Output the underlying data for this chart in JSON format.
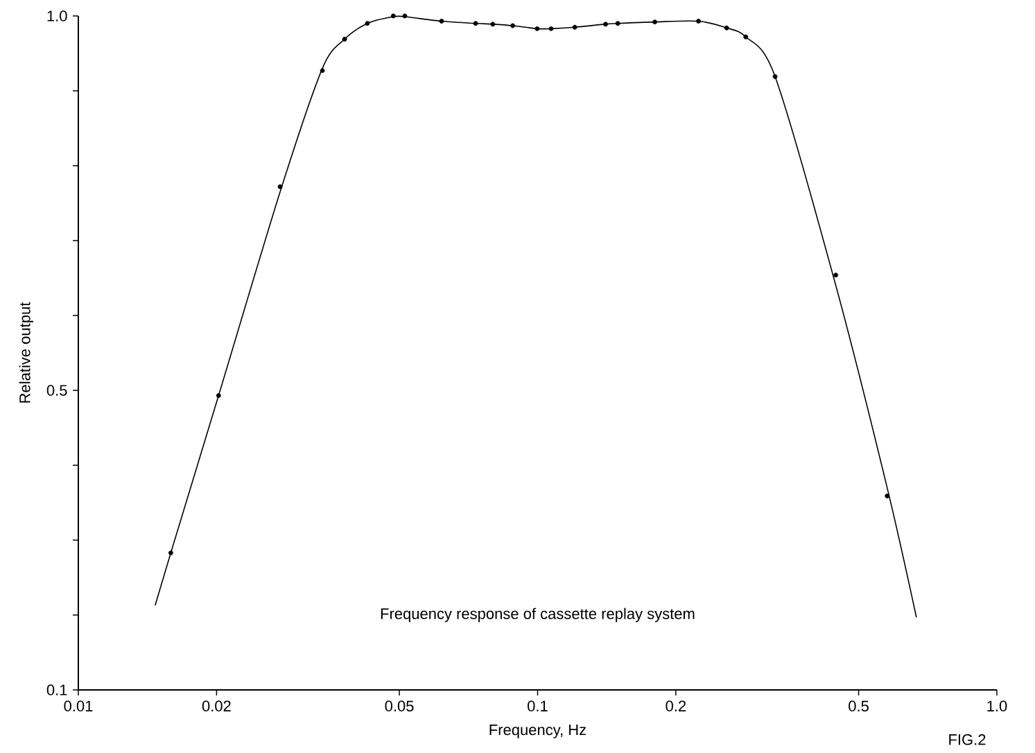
{
  "chart_data": {
    "type": "scatter",
    "title": "Frequency response of cassette replay system",
    "xlabel": "Frequency, Hz",
    "ylabel": "Relative output",
    "annotations": [
      "FIG.2"
    ],
    "log": "x",
    "xlim": [
      0.01,
      1
    ],
    "ylim": [
      0.1,
      1
    ],
    "xticks": [
      0.01,
      0.02,
      0.05,
      0.1,
      0.2,
      0.5,
      {
        "value": 1,
        "label": "1.0"
      }
    ],
    "yticks": [
      0.1,
      {
        "value": 0.2,
        "label": null
      },
      {
        "value": 0.3,
        "label": null
      },
      {
        "value": 0.4,
        "label": null
      },
      0.5,
      {
        "value": 0.6,
        "label": null
      },
      {
        "value": 0.7,
        "label": null
      },
      {
        "value": 0.8,
        "label": null
      },
      {
        "value": 0.9,
        "label": null
      },
      {
        "value": 1,
        "label": "1.0"
      }
    ],
    "series": [
      {
        "color": "#000000",
        "marker": "circle",
        "x": [
          0.0159,
          0.0202,
          0.0275,
          0.034,
          0.038,
          0.0426,
          0.0485,
          0.0514,
          0.0618,
          0.0733,
          0.0799,
          0.0883,
          0.0998,
          0.107,
          0.1205,
          0.1406,
          0.1495,
          0.18,
          0.224,
          0.258,
          0.284,
          0.329,
          0.446,
          0.577
        ],
        "values": [
          0.283,
          0.493,
          0.772,
          0.927,
          0.969,
          0.99,
          1.0,
          1.0,
          0.993,
          0.99,
          0.989,
          0.987,
          0.983,
          0.983,
          0.985,
          0.989,
          0.99,
          0.992,
          0.993,
          0.984,
          0.972,
          0.919,
          0.654,
          0.359
        ]
      },
      {
        "type": "line",
        "color": "#000000",
        "marker": "none",
        "line_style": "solid",
        "x": [
          0.0147,
          0.0159,
          0.0202,
          0.0275,
          0.034,
          0.038,
          0.0426,
          0.0485,
          0.0514,
          0.0618,
          0.0733,
          0.0799,
          0.0883,
          0.0998,
          0.107,
          0.1205,
          0.1406,
          0.1495,
          0.18,
          0.224,
          0.258,
          0.284,
          0.329,
          0.446,
          0.577,
          0.668
        ],
        "values": [
          0.213,
          0.283,
          0.493,
          0.765,
          0.93,
          0.969,
          0.99,
          0.999,
          0.999,
          0.993,
          0.99,
          0.989,
          0.987,
          0.983,
          0.983,
          0.985,
          0.989,
          0.99,
          0.992,
          0.993,
          0.984,
          0.972,
          0.919,
          0.64,
          0.37,
          0.197
        ]
      }
    ]
  }
}
